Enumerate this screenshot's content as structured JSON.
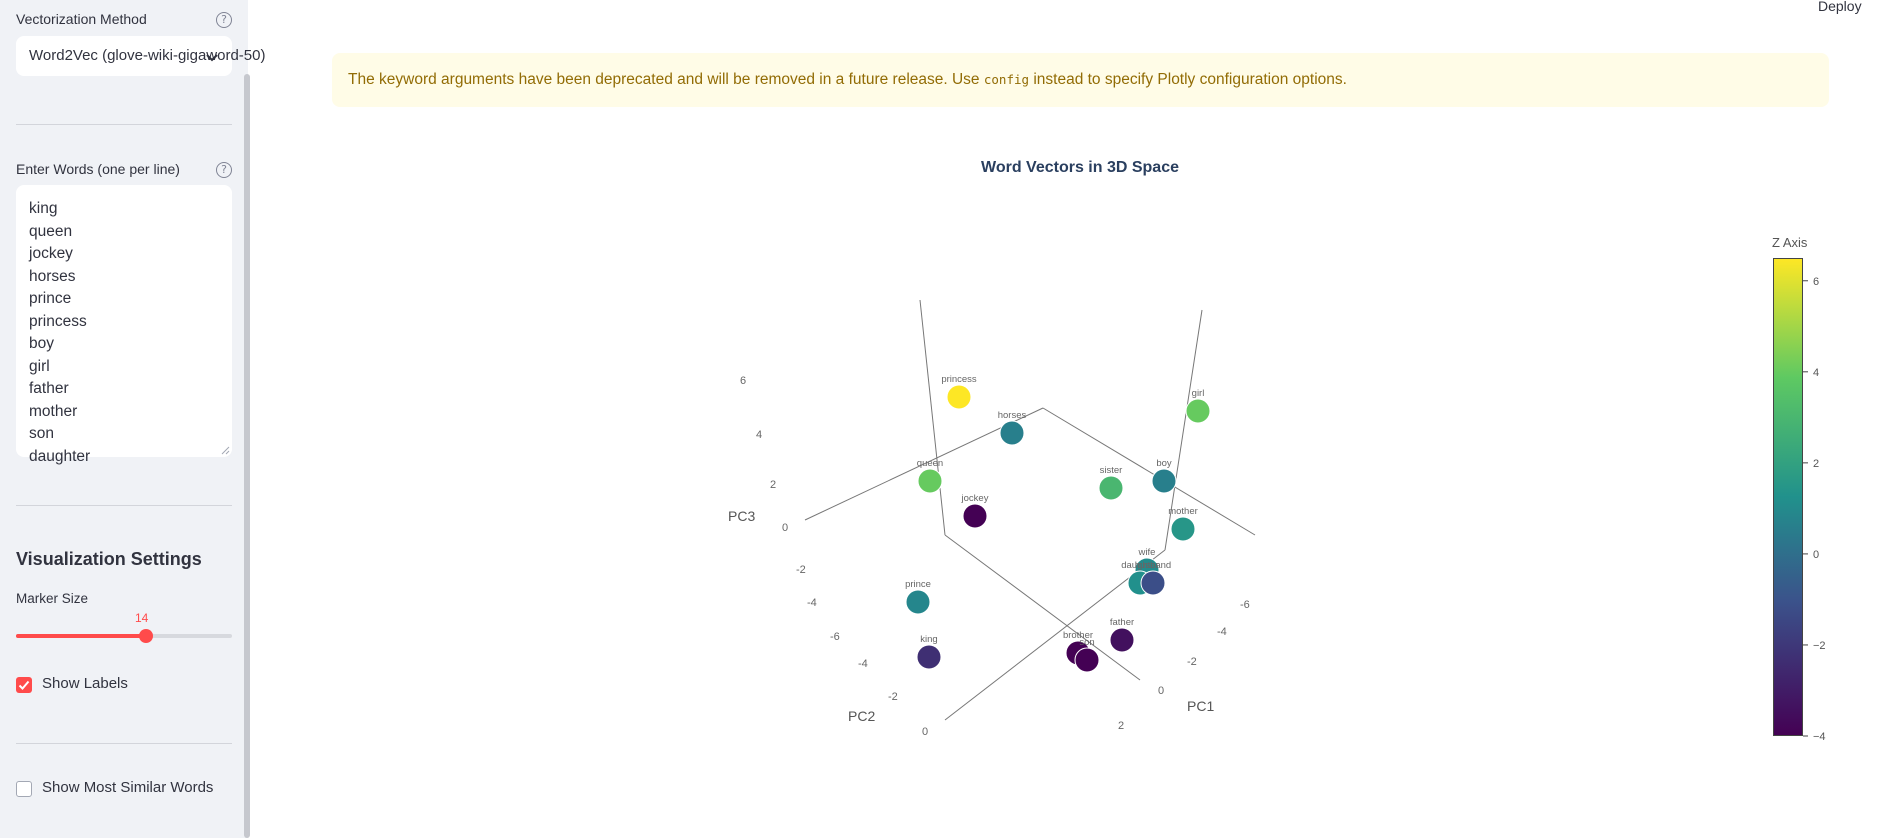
{
  "sidebar": {
    "method_label": "Vectorization Method",
    "method_value": "Word2Vec (glove-wiki-gigaword-50)",
    "words_label": "Enter Words (one per line)",
    "words": [
      "king",
      "queen",
      "jockey",
      "horses",
      "prince",
      "princess",
      "boy",
      "girl",
      "father",
      "mother",
      "son",
      "daughter"
    ],
    "viz_heading": "Visualization Settings",
    "marker_label": "Marker Size",
    "marker_value": 14,
    "marker_value_text": "14",
    "show_labels": "Show Labels",
    "show_labels_checked": true,
    "show_similar": "Show Most Similar Words",
    "show_similar_checked": false
  },
  "header": {
    "deploy": "Deploy"
  },
  "warning": {
    "before": "The keyword arguments have been deprecated and will be removed in a future release. Use ",
    "code": "config",
    "after": " instead to specify Plotly configuration options."
  },
  "chart_data": {
    "type": "scatter",
    "title": "Word Vectors in 3D Space",
    "axes": {
      "x": "PC1",
      "y": "PC2",
      "z": "PC3"
    },
    "z_ticks": [
      "6",
      "4",
      "2",
      "0",
      "-2",
      "-4",
      "-6"
    ],
    "y_ticks": [
      "-4",
      "-2",
      "0"
    ],
    "x_ticks": [
      "-6",
      "-4",
      "-2",
      "0",
      "2"
    ],
    "colorbar": {
      "title": "Z Axis",
      "ticks": [
        "6",
        "4",
        "2",
        "0",
        "-2",
        "-4"
      ],
      "min": -4,
      "max": 6.5
    },
    "marker_color_scale": "viridis",
    "points": [
      {
        "word": "princess",
        "z": 6.5
      },
      {
        "word": "horses",
        "z": 0.5
      },
      {
        "word": "girl",
        "z": 4.0
      },
      {
        "word": "queen",
        "z": 4.0
      },
      {
        "word": "sister",
        "z": 3.0
      },
      {
        "word": "boy",
        "z": 0.5
      },
      {
        "word": "jockey",
        "z": -4.0
      },
      {
        "word": "mother",
        "z": 1.5
      },
      {
        "word": "wife",
        "z": 1.0
      },
      {
        "word": "daughter",
        "z": 1.2
      },
      {
        "word": "husband",
        "z": -1.5
      },
      {
        "word": "prince",
        "z": 0.8
      },
      {
        "word": "father",
        "z": -3.5
      },
      {
        "word": "king",
        "z": -2.5
      },
      {
        "word": "brother",
        "z": -4.0
      },
      {
        "word": "son",
        "z": -4.0
      }
    ]
  }
}
